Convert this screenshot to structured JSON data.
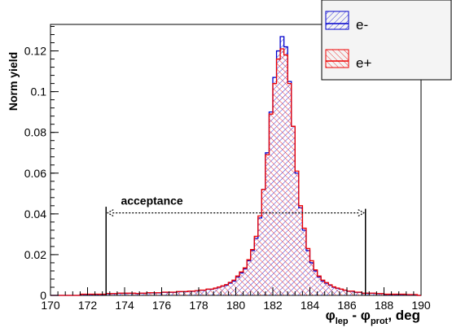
{
  "chart_data": {
    "type": "histogram",
    "xlim": [
      170,
      190
    ],
    "ylim": [
      0,
      0.133
    ],
    "x_ticks": [
      "170",
      "172",
      "174",
      "176",
      "178",
      "180",
      "182",
      "184",
      "186",
      "188",
      "190"
    ],
    "x_tick_values": [
      170,
      172,
      174,
      176,
      178,
      180,
      182,
      184,
      186,
      188,
      190
    ],
    "y_ticks": [
      "0",
      "0.02",
      "0.04",
      "0.06",
      "0.08",
      "0.1",
      "0.12"
    ],
    "y_tick_values": [
      0,
      0.02,
      0.04,
      0.06,
      0.08,
      0.1,
      0.12
    ],
    "ylabel": "Norm yield",
    "xlabel": {
      "phi": "φ",
      "sub1": "lep",
      "minus": " - ",
      "sub2": "prot",
      "unit": ", deg"
    },
    "bin_edges_start": 170,
    "bin_width": 0.2,
    "series": [
      {
        "name": "e-",
        "color": "#0000cc",
        "hatch": "diagonal-right",
        "values": [
          0,
          0,
          0,
          0,
          0,
          0,
          0,
          0,
          0.0005,
          0.0005,
          0.0005,
          0.0005,
          0.0005,
          0.0005,
          0.0005,
          0.0008,
          0.0008,
          0.0008,
          0.001,
          0.001,
          0.001,
          0.001,
          0.001,
          0.0008,
          0.001,
          0.001,
          0.0012,
          0.0012,
          0.0012,
          0.0012,
          0.0015,
          0.0015,
          0.0015,
          0.0015,
          0.0018,
          0.0018,
          0.0018,
          0.002,
          0.002,
          0.0022,
          0.0025,
          0.0025,
          0.003,
          0.003,
          0.0035,
          0.004,
          0.0045,
          0.005,
          0.006,
          0.007,
          0.009,
          0.011,
          0.013,
          0.017,
          0.022,
          0.028,
          0.038,
          0.052,
          0.07,
          0.09,
          0.107,
          0.12,
          0.127,
          0.122,
          0.105,
          0.083,
          0.06,
          0.043,
          0.032,
          0.022,
          0.016,
          0.012,
          0.009,
          0.007,
          0.006,
          0.005,
          0.004,
          0.0035,
          0.003,
          0.0025,
          0.002,
          0.002,
          0.0015,
          0.0015,
          0.001,
          0.001,
          0.001,
          0.001,
          0.0008,
          0.0008,
          0.0005,
          0.0005,
          0.0005,
          0.0005,
          0.0005,
          0.0005,
          0.0003,
          0.0003,
          0.0003,
          0
        ]
      },
      {
        "name": "e+",
        "color": "#ee0000",
        "hatch": "diagonal-left",
        "values": [
          0,
          0,
          0,
          0,
          0,
          0,
          0,
          0,
          0.0006,
          0.0006,
          0.0006,
          0.0006,
          0.0006,
          0.0006,
          0.0006,
          0.0009,
          0.0009,
          0.0009,
          0.0011,
          0.0011,
          0.0011,
          0.0011,
          0.0011,
          0.0009,
          0.0011,
          0.0011,
          0.0013,
          0.0013,
          0.0013,
          0.0013,
          0.0016,
          0.0016,
          0.0016,
          0.0016,
          0.0019,
          0.0019,
          0.0019,
          0.0021,
          0.0021,
          0.0023,
          0.0026,
          0.0026,
          0.0031,
          0.0031,
          0.0036,
          0.0041,
          0.0047,
          0.0053,
          0.0064,
          0.0075,
          0.0095,
          0.0115,
          0.0135,
          0.0175,
          0.0225,
          0.029,
          0.039,
          0.052,
          0.069,
          0.089,
          0.104,
          0.116,
          0.121,
          0.118,
          0.104,
          0.083,
          0.061,
          0.044,
          0.033,
          0.023,
          0.017,
          0.0125,
          0.0095,
          0.0075,
          0.0063,
          0.0052,
          0.0042,
          0.0036,
          0.0031,
          0.0026,
          0.0021,
          0.0021,
          0.0016,
          0.0016,
          0.0011,
          0.0011,
          0.0011,
          0.0011,
          0.0009,
          0.0009,
          0.0006,
          0.0006,
          0.0006,
          0.0006,
          0.0006,
          0.0006,
          0.0004,
          0.0004,
          0.0004,
          0
        ]
      }
    ],
    "annotation": {
      "text": "acceptance",
      "x_from": 173,
      "x_to": 187,
      "line_height_value": 0.043,
      "arrow_value": 0.0405
    },
    "legend": {
      "placement": "top-right",
      "entries": [
        "e-",
        "e+"
      ]
    }
  }
}
